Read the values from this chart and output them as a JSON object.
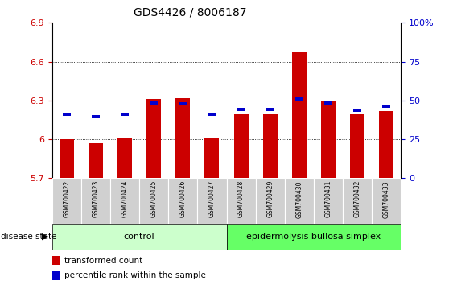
{
  "title": "GDS4426 / 8006187",
  "samples": [
    "GSM700422",
    "GSM700423",
    "GSM700424",
    "GSM700425",
    "GSM700426",
    "GSM700427",
    "GSM700428",
    "GSM700429",
    "GSM700430",
    "GSM700431",
    "GSM700432",
    "GSM700433"
  ],
  "red_values": [
    6.0,
    5.97,
    6.01,
    6.31,
    6.32,
    6.01,
    6.2,
    6.2,
    6.68,
    6.3,
    6.2,
    6.22
  ],
  "blue_values": [
    6.18,
    6.16,
    6.18,
    6.27,
    6.26,
    6.18,
    6.22,
    6.22,
    6.3,
    6.27,
    6.21,
    6.24
  ],
  "ymin": 5.7,
  "ymax": 6.9,
  "yticks": [
    5.7,
    6.0,
    6.3,
    6.6,
    6.9
  ],
  "ytick_labels": [
    "5.7",
    "6",
    "6.3",
    "6.6",
    "6.9"
  ],
  "right_ytick_pcts": [
    0,
    25,
    50,
    75,
    100
  ],
  "right_ytick_labels": [
    "0",
    "25",
    "50",
    "75",
    "100%"
  ],
  "bar_color": "#cc0000",
  "dot_color": "#0000cc",
  "control_count": 6,
  "disease_count": 6,
  "control_label": "control",
  "disease_label": "epidermolysis bullosa simplex",
  "disease_state_label": "disease state",
  "legend_red": "transformed count",
  "legend_blue": "percentile rank within the sample",
  "control_color": "#ccffcc",
  "disease_color": "#66ff66",
  "xlabel_bg": "#cccccc"
}
